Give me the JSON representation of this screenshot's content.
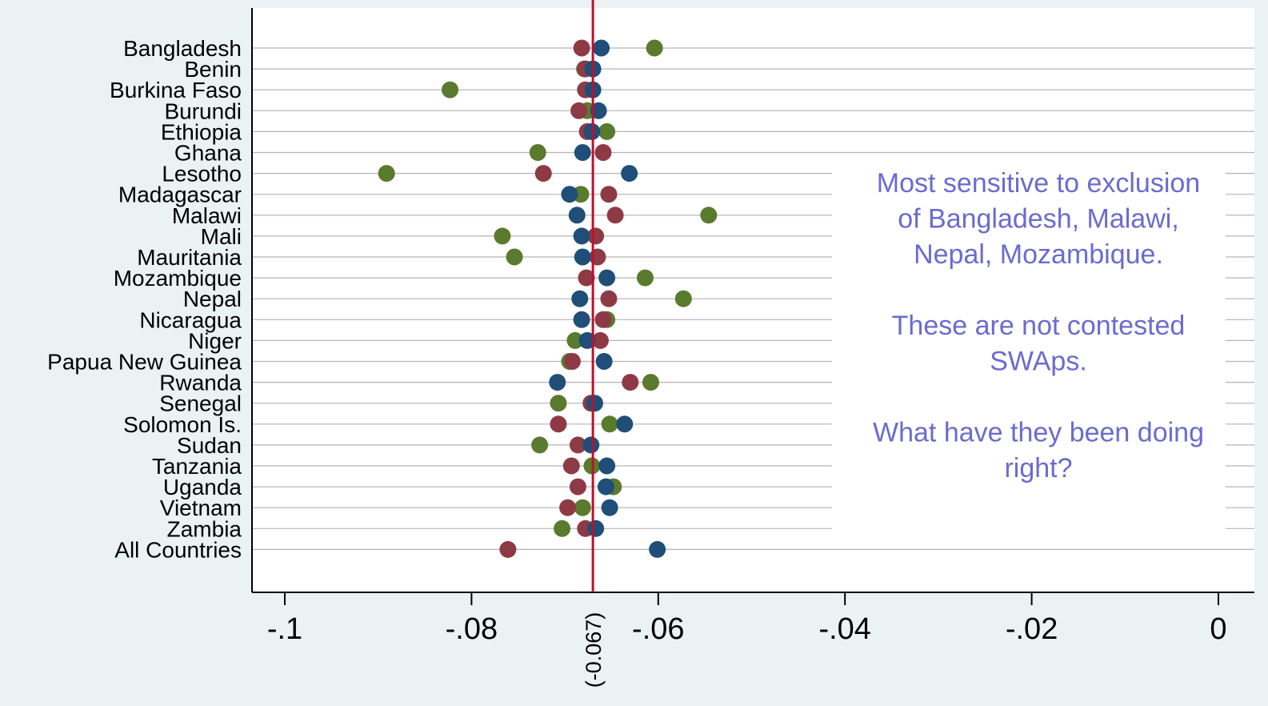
{
  "chart_data": {
    "type": "scatter",
    "title": "",
    "xlabel": "",
    "ylabel": "",
    "xlim": [
      -0.107,
      0.007
    ],
    "x_ticks": [
      {
        "value": -0.1,
        "label": "-.1"
      },
      {
        "value": -0.08,
        "label": "-.08"
      },
      {
        "value": -0.06,
        "label": "-.06"
      },
      {
        "value": -0.04,
        "label": "-.04"
      },
      {
        "value": -0.02,
        "label": "-.02"
      },
      {
        "value": 0,
        "label": "0"
      }
    ],
    "reference_line": {
      "value": -0.067,
      "label": "(-0.067)",
      "color": "#c0102b"
    },
    "grid": "horizontal",
    "legend": "none",
    "categories": [
      "Bangladesh",
      "Benin",
      "Burkina Faso",
      "Burundi",
      "Ethiopia",
      "Ghana",
      "Lesotho",
      "Madagascar",
      "Malawi",
      "Mali",
      "Mauritania",
      "Mozambique",
      "Nepal",
      "Nicaragua",
      "Niger",
      "Papua New Guinea",
      "Rwanda",
      "Senegal",
      "Solomon Is.",
      "Sudan",
      "Tanzania",
      "Uganda",
      "Vietnam",
      "Zambia",
      "All Countries"
    ],
    "series": [
      {
        "color": "#5a7a2e",
        "values": [
          -0.0604,
          -0.0679,
          -0.0823,
          -0.0676,
          -0.0655,
          -0.0729,
          -0.0891,
          -0.0683,
          -0.0546,
          -0.0767,
          -0.0754,
          -0.0614,
          -0.0573,
          -0.0655,
          -0.0689,
          -0.0695,
          -0.0608,
          -0.0707,
          -0.0652,
          -0.0727,
          -0.0671,
          -0.0648,
          -0.0681,
          -0.0703,
          null
        ]
      },
      {
        "color": "#8e3a45",
        "values": [
          -0.0682,
          -0.0678,
          -0.0678,
          -0.0685,
          -0.0676,
          -0.0659,
          -0.0723,
          -0.0653,
          -0.0646,
          -0.0667,
          -0.0665,
          -0.0677,
          -0.0653,
          -0.0659,
          -0.0662,
          -0.0692,
          -0.063,
          -0.0672,
          -0.0707,
          -0.0686,
          -0.0693,
          -0.0686,
          -0.0697,
          -0.0678,
          -0.0761
        ]
      },
      {
        "color": "#1f4e79",
        "values": [
          -0.0661,
          -0.067,
          -0.067,
          -0.0664,
          -0.0671,
          -0.0681,
          -0.0631,
          -0.0695,
          -0.0687,
          -0.0682,
          -0.0681,
          -0.0655,
          -0.0684,
          -0.0682,
          -0.0676,
          -0.0658,
          -0.0708,
          -0.0668,
          -0.0636,
          -0.0672,
          -0.0655,
          -0.0656,
          -0.0652,
          -0.0667,
          -0.0601
        ]
      }
    ],
    "annotations": [
      "Most sensitive to exclusion",
      "of Bangladesh, Malawi,",
      "Nepal, Mozambique.",
      "",
      "These are not contested",
      "SWAps.",
      "",
      "What have they been doing",
      "right?"
    ],
    "colors": {
      "background": "#eaf2f3",
      "plot_background": "#ffffff",
      "grid": "#b4b4b4",
      "annotation": "#6b6bcf",
      "axis": "#000000"
    }
  }
}
